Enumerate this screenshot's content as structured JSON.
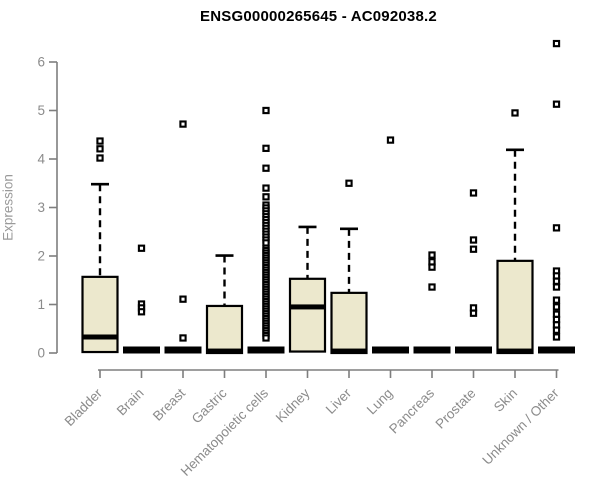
{
  "colors": {
    "box_fill": "#ece8cd",
    "box_stroke": "#000000",
    "axis_line": "#7e7e7e",
    "axis_text": "#8b8b8b",
    "title_text": "#000000",
    "background": "#ffffff"
  },
  "chart_data": {
    "type": "boxplot",
    "title": "ENSG00000265645 - AC092038.2",
    "xlabel": "",
    "ylabel": "Expression",
    "ylim": [
      0,
      6.5
    ],
    "yticks": [
      0,
      1,
      2,
      3,
      4,
      5,
      6
    ],
    "grid": false,
    "legend": false,
    "categories": [
      "Bladder",
      "Brain",
      "Breast",
      "Gastric",
      "Hematopoietic cells",
      "Kidney",
      "Liver",
      "Lung",
      "Pancreas",
      "Prostate",
      "Skin",
      "Unknown / Other"
    ],
    "boxes": [
      {
        "category": "Bladder",
        "q1": 0.02,
        "median": 0.33,
        "q3": 1.57,
        "whisker_low": 0,
        "whisker_high": 3.48,
        "outliers": [
          4.02,
          4.21,
          4.37
        ]
      },
      {
        "category": "Brain",
        "q1": 0,
        "median": 0.02,
        "q3": 0.05,
        "whisker_low": 0,
        "whisker_high": 0.05,
        "outliers": [
          2.16,
          1.01,
          0.93,
          0.85
        ]
      },
      {
        "category": "Breast",
        "q1": 0,
        "median": 0.02,
        "q3": 0.05,
        "whisker_low": 0,
        "whisker_high": 0.05,
        "outliers": [
          4.72,
          1.11,
          0.31
        ]
      },
      {
        "category": "Gastric",
        "q1": 0,
        "median": 0.04,
        "q3": 0.97,
        "whisker_low": 0,
        "whisker_high": 2.01,
        "outliers": []
      },
      {
        "category": "Hematopoietic cells",
        "q1": 0,
        "median": 0.02,
        "q3": 0.05,
        "whisker_low": 0,
        "whisker_high": 0.05,
        "outliers": [
          5.0,
          4.22,
          3.81,
          3.4,
          3.22,
          3.05,
          2.99,
          2.93,
          2.87,
          2.81,
          2.75,
          2.69,
          2.63,
          2.57,
          2.51,
          2.45,
          2.39,
          2.33,
          2.27,
          2.16,
          2.11,
          2.06,
          2.01,
          1.96,
          1.91,
          1.86,
          1.81,
          1.76,
          1.71,
          1.66,
          1.61,
          1.56,
          1.51,
          1.46,
          1.41,
          1.36,
          1.31,
          1.26,
          1.21,
          1.16,
          1.11,
          1.06,
          1.01,
          0.96,
          0.91,
          0.86,
          0.81,
          0.76,
          0.71,
          0.66,
          0.61,
          0.56,
          0.51,
          0.46,
          0.41,
          0.36,
          0.31
        ]
      },
      {
        "category": "Kidney",
        "q1": 0.03,
        "median": 0.95,
        "q3": 1.53,
        "whisker_low": 0,
        "whisker_high": 2.6,
        "outliers": []
      },
      {
        "category": "Liver",
        "q1": 0,
        "median": 0.04,
        "q3": 1.24,
        "whisker_low": 0,
        "whisker_high": 2.56,
        "outliers": [
          3.5
        ]
      },
      {
        "category": "Lung",
        "q1": 0,
        "median": 0.02,
        "q3": 0.05,
        "whisker_low": 0,
        "whisker_high": 0.05,
        "outliers": [
          4.39
        ]
      },
      {
        "category": "Pancreas",
        "q1": 0,
        "median": 0.02,
        "q3": 0.05,
        "whisker_low": 0,
        "whisker_high": 0.05,
        "outliers": [
          2.02,
          1.88,
          1.77,
          1.36
        ]
      },
      {
        "category": "Prostate",
        "q1": 0,
        "median": 0.02,
        "q3": 0.05,
        "whisker_low": 0,
        "whisker_high": 0.05,
        "outliers": [
          3.3,
          2.33,
          2.14,
          0.93,
          0.82
        ]
      },
      {
        "category": "Skin",
        "q1": 0,
        "median": 0.04,
        "q3": 1.9,
        "whisker_low": 0,
        "whisker_high": 4.19,
        "outliers": [
          4.95
        ]
      },
      {
        "category": "Unknown / Other",
        "q1": 0,
        "median": 0.02,
        "q3": 0.05,
        "whisker_low": 0,
        "whisker_high": 0.05,
        "outliers": [
          6.38,
          5.13,
          2.58,
          1.69,
          1.59,
          1.48,
          1.36,
          1.09,
          0.95,
          0.8,
          0.69,
          0.58,
          0.47,
          0.33
        ]
      }
    ]
  }
}
